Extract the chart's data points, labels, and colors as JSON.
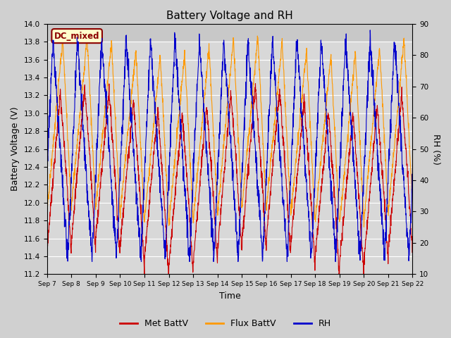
{
  "title": "Battery Voltage and RH",
  "xlabel": "Time",
  "ylabel_left": "Battery Voltage (V)",
  "ylabel_right": "RH (%)",
  "ylim_left": [
    11.2,
    14.0
  ],
  "ylim_right": [
    10,
    90
  ],
  "yticks_left": [
    11.2,
    11.4,
    11.6,
    11.8,
    12.0,
    12.2,
    12.4,
    12.6,
    12.8,
    13.0,
    13.2,
    13.4,
    13.6,
    13.8,
    14.0
  ],
  "yticks_right": [
    10,
    20,
    30,
    40,
    50,
    60,
    70,
    80,
    90
  ],
  "xtick_labels": [
    "Sep 7",
    "Sep 8",
    "Sep 9",
    "Sep 10",
    "Sep 11",
    "Sep 12",
    "Sep 13",
    "Sep 14",
    "Sep 15",
    "Sep 16",
    "Sep 17",
    "Sep 18",
    "Sep 19",
    "Sep 20",
    "Sep 21",
    "Sep 22"
  ],
  "label_box_text": "DC_mixed",
  "label_box_facecolor": "#ffffcc",
  "label_box_edgecolor": "#8b0000",
  "label_box_textcolor": "#8b0000",
  "color_met": "#cc0000",
  "color_flux": "#ff9900",
  "color_rh": "#0000cc",
  "legend_labels": [
    "Met BattV",
    "Flux BattV",
    "RH"
  ],
  "fig_facecolor": "#d0d0d0",
  "plot_bg_color": "#d8d8d8",
  "plot_bg_upper": "#c8c8c8",
  "n_points": 2000,
  "n_days": 15
}
